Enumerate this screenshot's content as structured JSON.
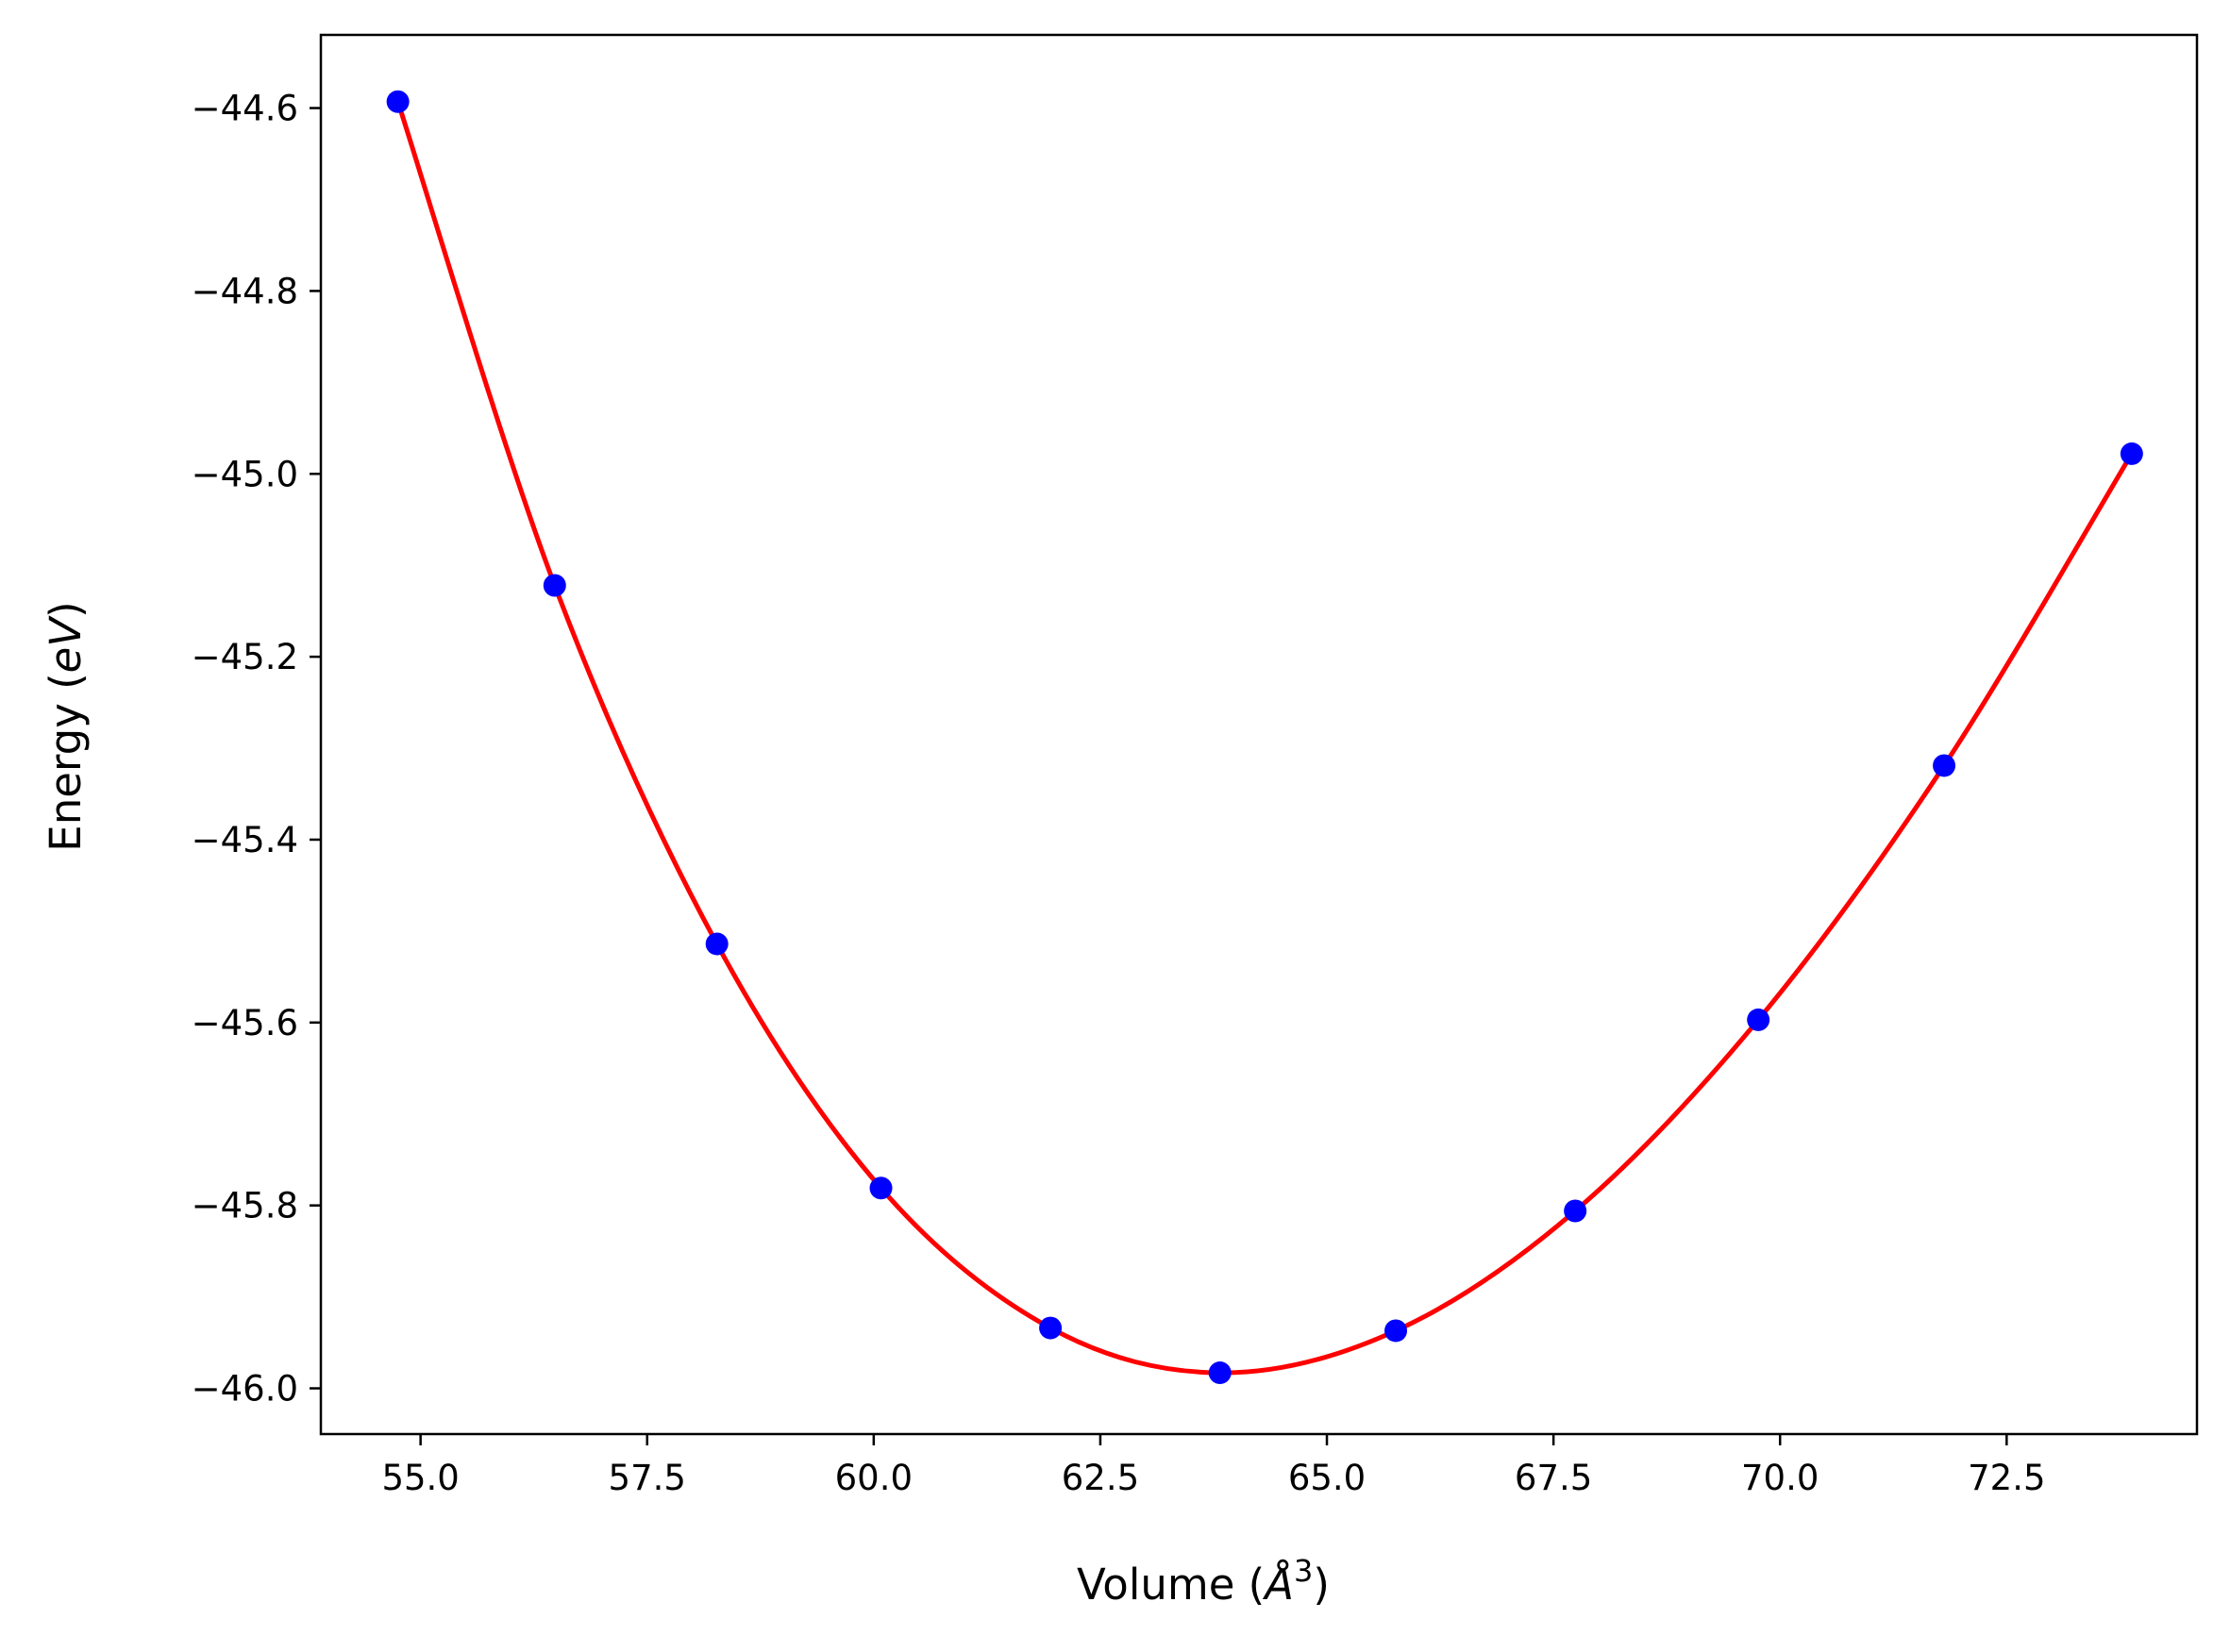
{
  "chart_data": {
    "type": "line",
    "title": "",
    "xlabel": "Volume (Å³)",
    "xlabel_parts": {
      "prefix": "Volume (",
      "symbol": "Å",
      "exponent": "3",
      "suffix": ")"
    },
    "ylabel": "Energy (eV)",
    "ylabel_parts": {
      "prefix": "Energy (",
      "symbol": "eV",
      "suffix": ")"
    },
    "xlim": [
      53.9,
      74.6
    ],
    "ylim": [
      -46.05,
      -44.52
    ],
    "xticks": [
      55.0,
      57.5,
      60.0,
      62.5,
      65.0,
      67.5,
      70.0,
      72.5
    ],
    "xtick_labels": [
      "55.0",
      "57.5",
      "60.0",
      "62.5",
      "65.0",
      "67.5",
      "70.0",
      "72.5"
    ],
    "yticks": [
      -44.6,
      -44.8,
      -45.0,
      -45.2,
      -45.4,
      -45.6,
      -45.8,
      -46.0
    ],
    "ytick_labels": [
      "−44.6",
      "−44.8",
      "−45.0",
      "−45.2",
      "−45.4",
      "−45.6",
      "−45.8",
      "−46.0"
    ],
    "grid": false,
    "legend": "none",
    "series": [
      {
        "kind": "scatter",
        "color": "#0000ff",
        "x": [
          54.75,
          56.48,
          58.27,
          60.08,
          61.95,
          63.82,
          65.76,
          67.74,
          69.76,
          71.81,
          73.88
        ],
        "y": [
          -44.593,
          -45.122,
          -45.514,
          -45.781,
          -45.934,
          -45.983,
          -45.937,
          -45.806,
          -45.597,
          -45.319,
          -44.978
        ]
      },
      {
        "kind": "fit",
        "color": "#ff0000",
        "x": [
          54.75,
          56.48,
          58.27,
          60.08,
          61.95,
          63.82,
          65.76,
          67.74,
          69.76,
          71.81,
          73.88
        ],
        "y": [
          -44.593,
          -45.122,
          -45.514,
          -45.781,
          -45.934,
          -45.983,
          -45.937,
          -45.806,
          -45.597,
          -45.319,
          -44.978
        ]
      }
    ]
  }
}
